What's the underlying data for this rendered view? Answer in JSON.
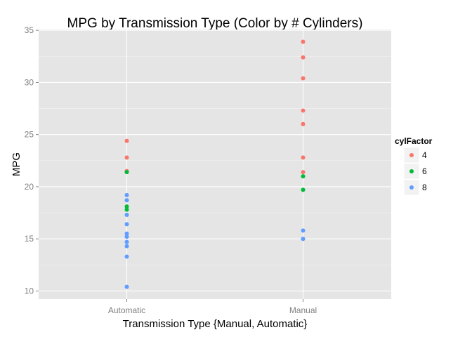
{
  "chart_data": {
    "type": "scatter",
    "title": "MPG by Transmission Type (Color by # Cylinders)",
    "xlabel": "Transmission Type {Manual, Automatic}",
    "ylabel": "MPG",
    "categories": [
      "Automatic",
      "Manual"
    ],
    "ylim": [
      9.225,
      35.075
    ],
    "yticks": [
      10,
      15,
      20,
      25,
      30,
      35
    ],
    "grid": true,
    "legend_position": "right",
    "legend_title": "cylFactor",
    "series": [
      {
        "name": "4",
        "color": "#F8766D",
        "points": [
          {
            "x": "Automatic",
            "y": 24.4
          },
          {
            "x": "Automatic",
            "y": 22.8
          },
          {
            "x": "Automatic",
            "y": 21.5
          },
          {
            "x": "Manual",
            "y": 33.9
          },
          {
            "x": "Manual",
            "y": 32.4
          },
          {
            "x": "Manual",
            "y": 30.4
          },
          {
            "x": "Manual",
            "y": 27.3
          },
          {
            "x": "Manual",
            "y": 26.0
          },
          {
            "x": "Manual",
            "y": 22.8
          },
          {
            "x": "Manual",
            "y": 21.4
          }
        ]
      },
      {
        "name": "6",
        "color": "#00BA38",
        "points": [
          {
            "x": "Automatic",
            "y": 21.4
          },
          {
            "x": "Automatic",
            "y": 18.1
          },
          {
            "x": "Automatic",
            "y": 17.8
          },
          {
            "x": "Manual",
            "y": 21.0
          },
          {
            "x": "Manual",
            "y": 19.7
          }
        ]
      },
      {
        "name": "8",
        "color": "#619CFF",
        "points": [
          {
            "x": "Automatic",
            "y": 19.2
          },
          {
            "x": "Automatic",
            "y": 18.7
          },
          {
            "x": "Automatic",
            "y": 17.3
          },
          {
            "x": "Automatic",
            "y": 16.4
          },
          {
            "x": "Automatic",
            "y": 15.5
          },
          {
            "x": "Automatic",
            "y": 15.2
          },
          {
            "x": "Automatic",
            "y": 14.7
          },
          {
            "x": "Automatic",
            "y": 14.3
          },
          {
            "x": "Automatic",
            "y": 13.3
          },
          {
            "x": "Automatic",
            "y": 10.4
          },
          {
            "x": "Manual",
            "y": 15.8
          },
          {
            "x": "Manual",
            "y": 15.0
          }
        ]
      }
    ]
  }
}
